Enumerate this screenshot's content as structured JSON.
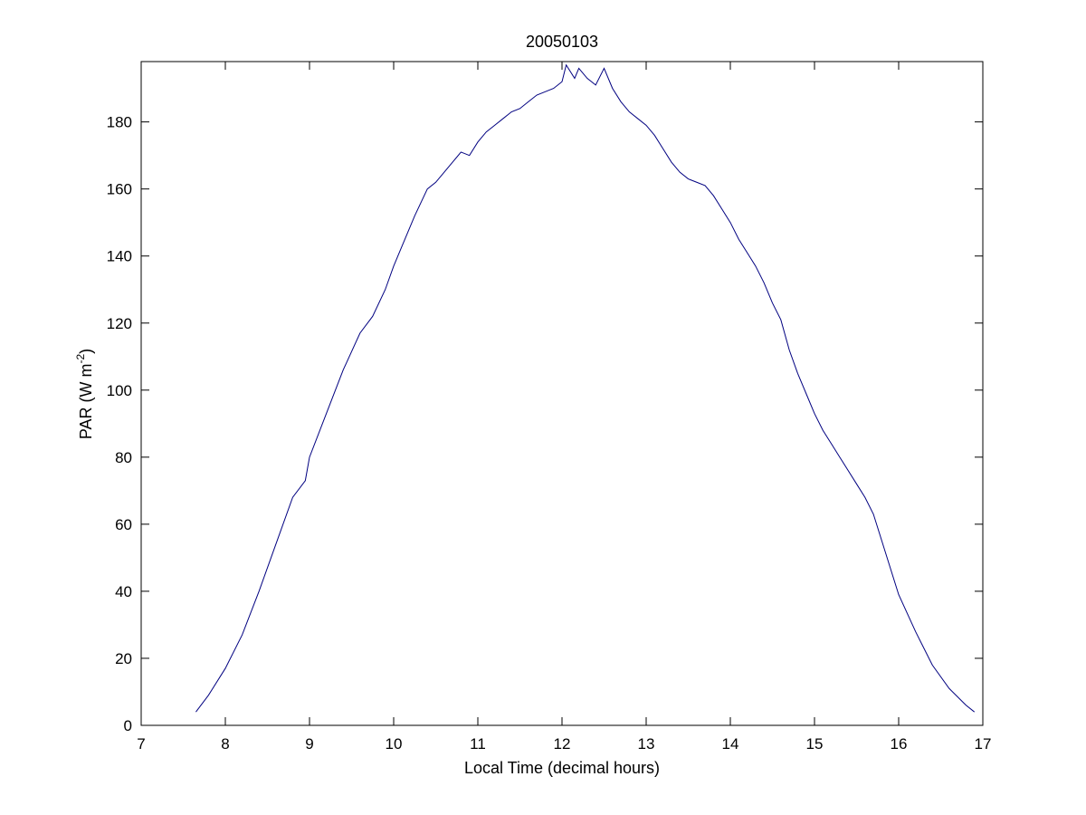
{
  "chart_data": {
    "type": "line",
    "title": "20050103",
    "xlabel": "Local Time (decimal hours)",
    "ylabel_main": "PAR (W m",
    "ylabel_sup": "-2",
    "ylabel_close": ")",
    "xlim": [
      7,
      17
    ],
    "ylim": [
      0,
      198
    ],
    "xticks": [
      7,
      8,
      9,
      10,
      11,
      12,
      13,
      14,
      15,
      16,
      17
    ],
    "yticks": [
      0,
      20,
      40,
      60,
      80,
      100,
      120,
      140,
      160,
      180
    ],
    "grid": false,
    "line_color": "#000080",
    "series": [
      {
        "x": [
          7.65,
          7.8,
          8.0,
          8.2,
          8.4,
          8.6,
          8.8,
          8.95,
          9.0,
          9.2,
          9.4,
          9.6,
          9.75,
          9.9,
          10.0,
          10.1,
          10.25,
          10.4,
          10.5,
          10.6,
          10.7,
          10.8,
          10.9,
          11.0,
          11.1,
          11.2,
          11.3,
          11.4,
          11.5,
          11.6,
          11.7,
          11.8,
          11.9,
          12.0,
          12.05,
          12.15,
          12.2,
          12.3,
          12.4,
          12.5,
          12.6,
          12.7,
          12.8,
          12.9,
          13.0,
          13.1,
          13.2,
          13.3,
          13.4,
          13.5,
          13.6,
          13.7,
          13.8,
          13.9,
          14.0,
          14.1,
          14.2,
          14.3,
          14.4,
          14.5,
          14.6,
          14.7,
          14.8,
          14.9,
          15.0,
          15.1,
          15.2,
          15.3,
          15.4,
          15.5,
          15.6,
          15.7,
          15.8,
          15.9,
          16.0,
          16.2,
          16.4,
          16.6,
          16.8,
          16.9
        ],
        "y": [
          4,
          9,
          17,
          27,
          40,
          54,
          68,
          73,
          80,
          93,
          106,
          117,
          122,
          130,
          137,
          143,
          152,
          160,
          162,
          165,
          168,
          171,
          170,
          174,
          177,
          179,
          181,
          183,
          184,
          186,
          188,
          189,
          190,
          192,
          197,
          193,
          196,
          193,
          191,
          196,
          190,
          186,
          183,
          181,
          179,
          176,
          172,
          168,
          165,
          163,
          162,
          161,
          158,
          154,
          150,
          145,
          141,
          137,
          132,
          126,
          121,
          112,
          105,
          99,
          93,
          88,
          84,
          80,
          76,
          72,
          68,
          63,
          55,
          47,
          39,
          28,
          18,
          11,
          6,
          4
        ]
      }
    ]
  }
}
